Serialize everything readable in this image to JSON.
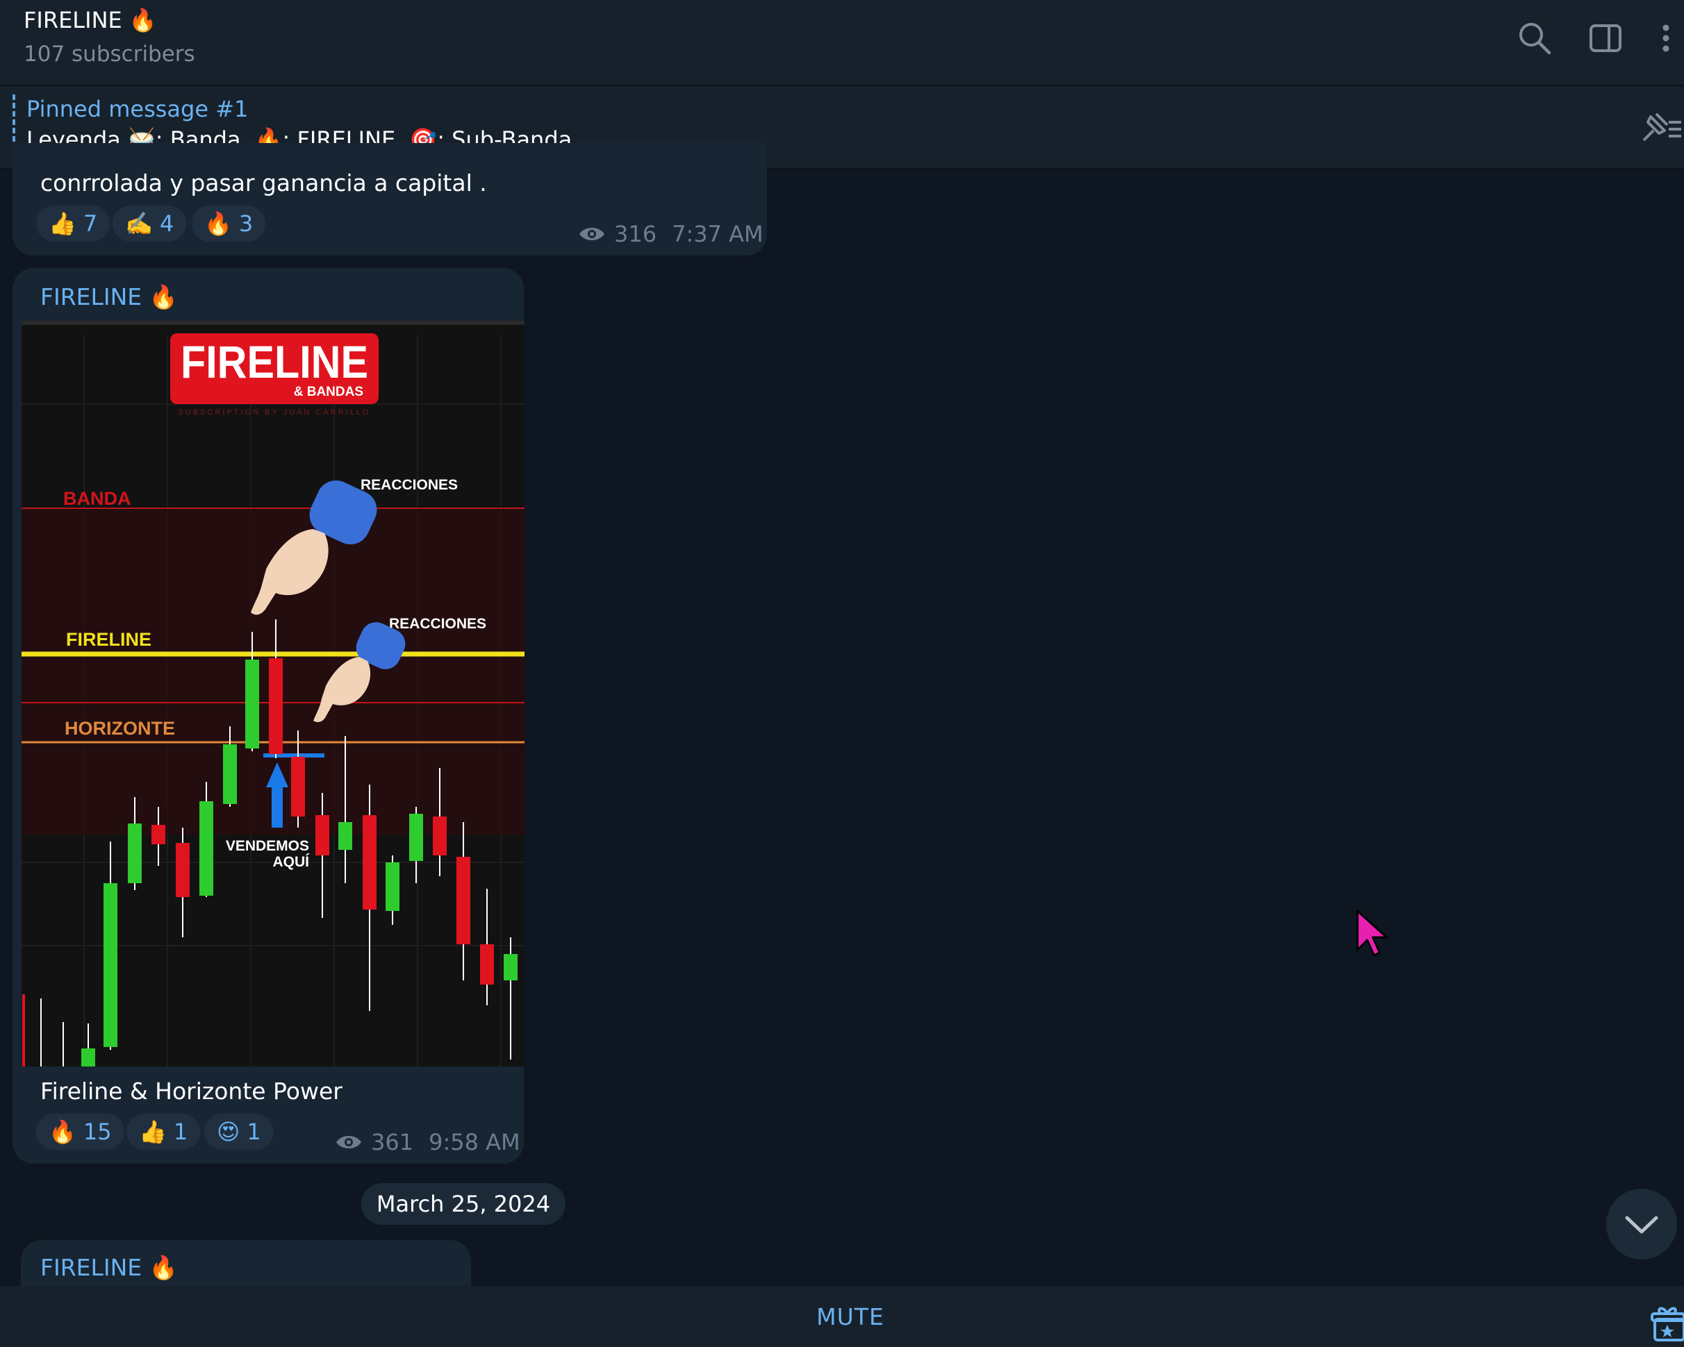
{
  "header": {
    "title": "FIRELINE 🔥",
    "subtitle": "107 subscribers",
    "icons": [
      "search-icon",
      "sidebar-toggle-icon",
      "more-vertical-icon"
    ]
  },
  "pinned": {
    "title": "Pinned message #1",
    "parts": [
      "Leyenda 🥁: Banda",
      "🔥: FIRELINE",
      "🎯: Sub-Banda"
    ]
  },
  "message1": {
    "text": "conrrolada y pasar ganancia a capital .",
    "reactions": [
      {
        "emoji": "👍",
        "count": "7"
      },
      {
        "emoji": "✍️",
        "count": "4"
      },
      {
        "emoji": "🔥",
        "count": "3"
      }
    ],
    "views": "316",
    "time": "7:37 AM"
  },
  "message2": {
    "author": "FIRELINE 🔥",
    "image": {
      "logo": "FIRELINE",
      "logo_sub": "& BANDAS",
      "logo_tag": "SUBSCRIPTION BY JUAN CARRILLO",
      "labels": {
        "banda": "BANDA",
        "fireline": "FIRELINE",
        "horizonte": "HORIZONTE",
        "reacciones1": "REACCIONES",
        "reacciones2": "REACCIONES",
        "vendemos1": "VENDEMOS",
        "vendemos2": "AQUÍ"
      }
    },
    "caption": "Fireline & Horizonte Power",
    "reactions": [
      {
        "emoji": "🔥",
        "count": "15"
      },
      {
        "emoji": "👍",
        "count": "1"
      },
      {
        "emoji": "😍",
        "count": "1"
      }
    ],
    "views": "361",
    "time": "9:58 AM"
  },
  "date_separator": "March 25, 2024",
  "message3": {
    "author": "FIRELINE 🔥"
  },
  "bottom": {
    "mute_label": "MUTE"
  },
  "colors": {
    "background": "#0e1621",
    "panel": "#17212b",
    "bubble": "#182533",
    "accent": "#6ab2f2",
    "candle_up": "#2ecc2e",
    "candle_down": "#e0141e",
    "fireline": "#f2e21a",
    "horizonte": "#e08a3c"
  }
}
